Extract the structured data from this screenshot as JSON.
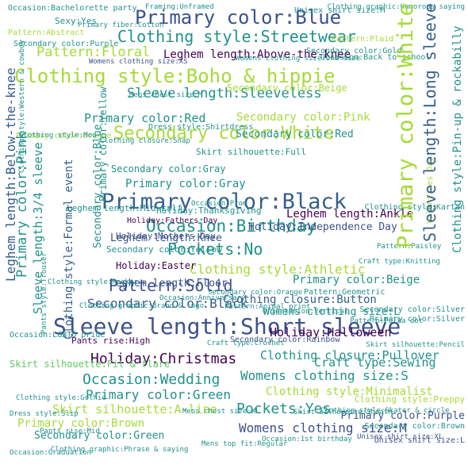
{
  "palette": {
    "dark_purple": "#440154",
    "indigo": "#3b528b",
    "slate_blue": "#355f8d",
    "teal": "#21918c",
    "sea_green": "#2ab07f",
    "green": "#5ec962",
    "lime": "#a5db36",
    "yellow": "#fde725"
  },
  "words": [
    "Primary color:Blue",
    "Clothing style:Streetwear",
    "Pattern:Floral",
    "Leghem length:Above-the-knee",
    "Clothing style:Boho & hippie",
    "Sleeve length:Sleeveless",
    "Primary color:Red",
    "Secondary color:Pink",
    "Secondary color:White",
    "Primary color:Black",
    "Occasion:Birthday",
    "Pockets:No",
    "Pattern:Solid",
    "Sleeve length:Short sleeve",
    "Holiday:Christmas",
    "Occasion:Wedding",
    "Pockets:Yes",
    "Womens clothing size:M",
    "Womens clothing size:S",
    "Clothing closure:Pullover",
    "Clothing closure:Button",
    "Secondary color:Black",
    "Primary color:Green",
    "Skirt silhouette:A-line",
    "Clothing style:Minimalist",
    "Primary color:Purple",
    "Primary color:Brown",
    "Secondary color:Green",
    "Primary color:Gray",
    "Leghem length:Ankle",
    "Holiday:Independence Day",
    "Leghem length:Knee",
    "Leghem length:Floor",
    "Clothing style:Athletic",
    "Primary color:Beige",
    "Holiday:Halloween",
    "Womens clothing size:L",
    "Craft type:Sewing",
    "Skirt silhouette:Fit & flare",
    "Holiday:Easter",
    "Pants rise:High",
    "Secondary color:Gray",
    "Secondary color:Yellow",
    "Secondary color:Red",
    "Secondary color:Beige",
    "Skirt silhouette:Full",
    "Dress style:Shirtdress",
    "Holiday:Fathers Day",
    "Holiday:Mothers Day",
    "Holiday:Thanksgiving",
    "Occasion:Bachelorette party",
    "Framing:Unframed",
    "Unisex shirt size:M",
    "Clothing graphic:Humorous saying",
    "Sexy:Yes",
    "Primary fiber:Cotton",
    "Pattern:Abstract",
    "Secondary color:Purple",
    "Secondary color:Gold",
    "Occasion:Back to school",
    "Pattern:Plaid",
    "Primary color:Orange",
    "Clothing style:Mod",
    "Clothing closure:Snap",
    "Mens chest size:M",
    "Womens clothing size:XS",
    "Womens clothing size:One size",
    "Secondary color:Orange",
    "Secondary color:Rainbow",
    "Secondary color:Silver",
    "Secondary color:Brown",
    "Primary color:Silver",
    "Occasion:Prom",
    "Occasion:Anniversary",
    "Occasion:Graduation",
    "Occasion:1st birthday",
    "Occasion:LGBTQ pride",
    "Clothing style:Preppy",
    "Clothing style:Rocker",
    "Clothing style:Gothic",
    "Clothing style:Kartan",
    "Clothing style:Skater & circle",
    "Skirt silhouette:Pencil",
    "Skirt silhouette:Sheath",
    "Pattern:Geometric",
    "Pattern:Animal print",
    "Pattern:Polka dot",
    "Pattern:Paisley",
    "Craft type:Crochet",
    "Craft type:Knitting",
    "Dress style:Slip",
    "Mens chest size:XL",
    "Mens top fit:Regular",
    "Pants rise:Mid",
    "Unisex shirt size:L",
    "Unisex shirt size:XL",
    "Orientation:Vertical",
    "Clothing graphic:Phrase & saying",
    "Clothing graphic:Brand & logo",
    "Valentines Day",
    "Leghem length:Mid-calf",
    "Leghem length:Below-the-knee",
    "Primary color:Pink",
    "Sleeve length:3/4 sleeve",
    "Clothing style:Formal event",
    "Secondary color:Blue",
    "Primary color:Yellow",
    "Primary color:White",
    "Sleeve length:Long sleeve",
    "Clothing style:Pin-up & rockabilly",
    "Clothing style:Western & cowboy",
    "Pants style:Trouser"
  ]
}
